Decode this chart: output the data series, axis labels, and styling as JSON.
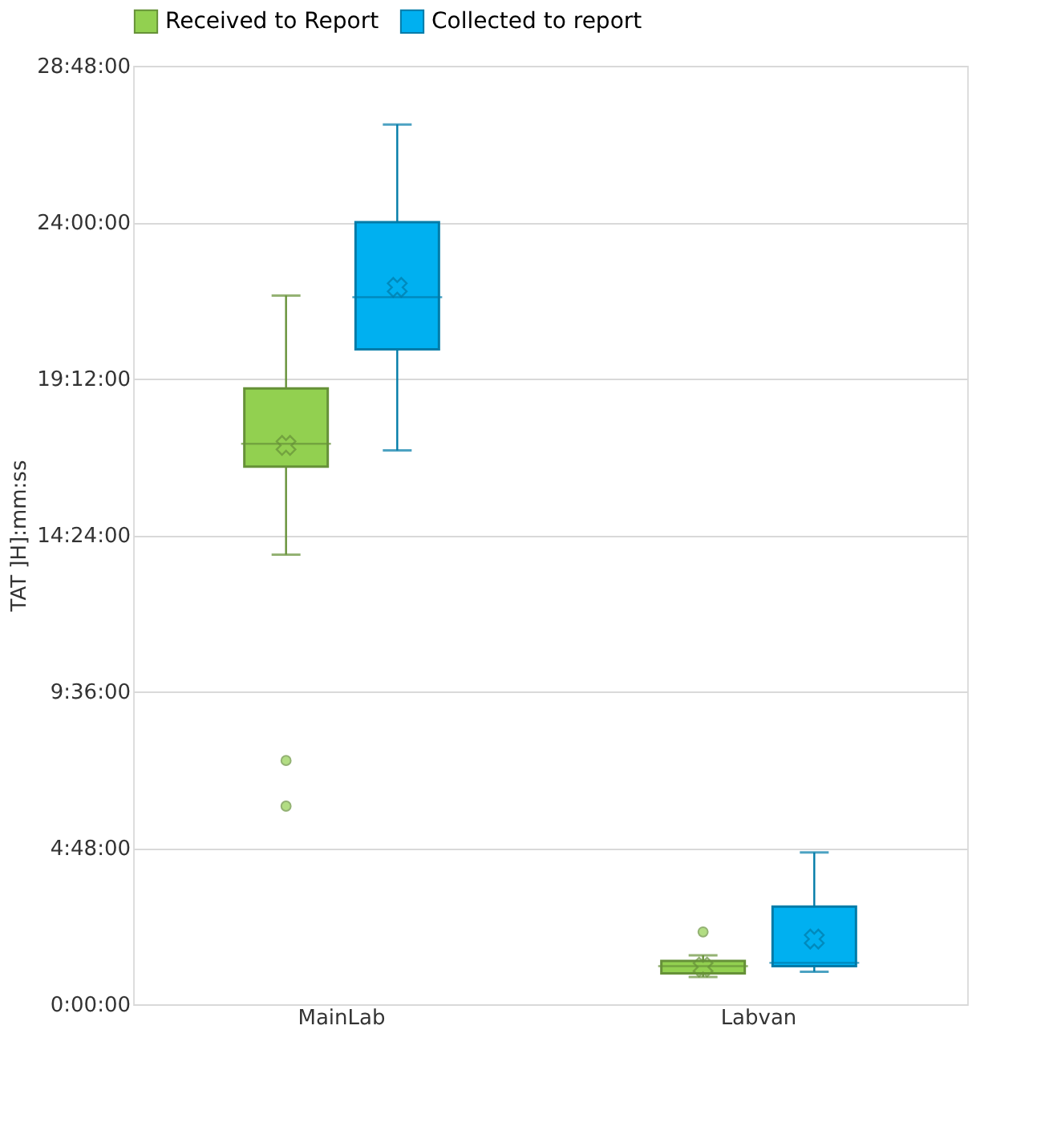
{
  "chart_data": {
    "type": "box",
    "categories": [
      "MainLab",
      "Labvan"
    ],
    "ylabel": "TAT ]H]:mm:ss",
    "ylim": [
      0,
      28.8
    ],
    "yticks": [
      {
        "value": 0,
        "label": "0:00:00"
      },
      {
        "value": 4.8,
        "label": "4:48:00"
      },
      {
        "value": 9.6,
        "label": "9:36:00"
      },
      {
        "value": 14.4,
        "label": "14:24:00"
      },
      {
        "value": 19.2,
        "label": "19:12:00"
      },
      {
        "value": 24,
        "label": "24:00:00"
      },
      {
        "value": 28.8,
        "label": "28:48:00"
      }
    ],
    "grid": "y",
    "legend": "top",
    "series": [
      {
        "name": "Received to Report",
        "color": "#92d050",
        "boxes": [
          {
            "low": 13.8,
            "q1": 16.5,
            "median": 17.2,
            "q3": 18.9,
            "high": 21.75,
            "mean": 17.15,
            "outliers": [
              7.48,
              6.08
            ]
          },
          {
            "low": 0.84,
            "q1": 0.95,
            "median": 1.17,
            "q3": 1.33,
            "high": 1.5,
            "mean": 1.14,
            "outliers": [
              2.22
            ]
          }
        ]
      },
      {
        "name": "Collected to report",
        "color": "#00b0f0",
        "boxes": [
          {
            "low": 17.0,
            "q1": 20.1,
            "median": 21.7,
            "q3": 24.0,
            "high": 27.0,
            "mean": 22.0
          },
          {
            "low": 1.0,
            "q1": 1.17,
            "median": 1.27,
            "q3": 3.0,
            "high": 4.66,
            "mean": 2.0
          }
        ]
      }
    ]
  }
}
